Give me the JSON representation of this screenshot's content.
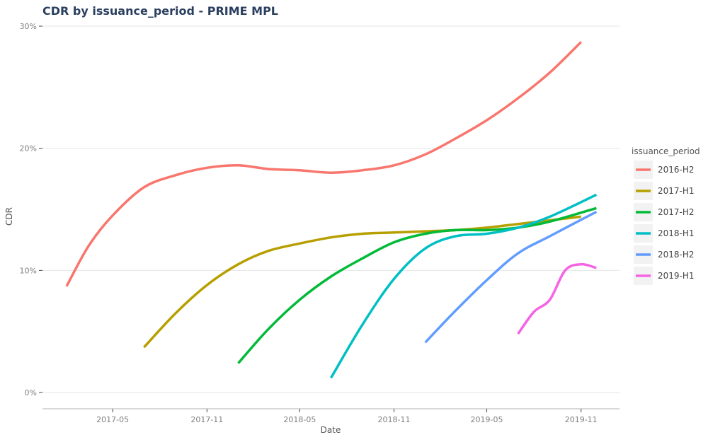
{
  "chart_data": {
    "type": "line",
    "title": "CDR by issuance_period - PRIME MPL",
    "xlabel": "Date",
    "ylabel": "CDR",
    "x_ticks": [
      "2017-05",
      "2017-11",
      "2018-05",
      "2018-11",
      "2019-05",
      "2019-11"
    ],
    "y_ticks": [
      "0%",
      "10%",
      "20%",
      "30%"
    ],
    "ylim": [
      0,
      30
    ],
    "xlim": [
      "2016-12-15",
      "2020-01-15"
    ],
    "grid": true,
    "legend_title": "issuance_period",
    "legend_position": "right",
    "series": [
      {
        "name": "2016-H2",
        "color": "#F8766D",
        "points": [
          [
            "2017-01-31",
            8.7
          ],
          [
            "2017-03-15",
            12.0
          ],
          [
            "2017-05-01",
            14.5
          ],
          [
            "2017-07-01",
            16.8
          ],
          [
            "2017-09-01",
            17.8
          ],
          [
            "2017-11-01",
            18.4
          ],
          [
            "2018-01-01",
            18.6
          ],
          [
            "2018-03-01",
            18.3
          ],
          [
            "2018-05-01",
            18.2
          ],
          [
            "2018-07-01",
            18.0
          ],
          [
            "2018-09-01",
            18.2
          ],
          [
            "2018-11-01",
            18.6
          ],
          [
            "2019-01-01",
            19.5
          ],
          [
            "2019-03-01",
            20.8
          ],
          [
            "2019-05-01",
            22.3
          ],
          [
            "2019-07-01",
            24.1
          ],
          [
            "2019-09-01",
            26.2
          ],
          [
            "2019-11-01",
            28.7
          ]
        ]
      },
      {
        "name": "2017-H1",
        "color": "#B79F00",
        "points": [
          [
            "2017-07-01",
            3.7
          ],
          [
            "2017-09-01",
            6.5
          ],
          [
            "2017-11-01",
            8.8
          ],
          [
            "2018-01-01",
            10.5
          ],
          [
            "2018-03-01",
            11.6
          ],
          [
            "2018-05-01",
            12.2
          ],
          [
            "2018-07-01",
            12.7
          ],
          [
            "2018-09-01",
            13.0
          ],
          [
            "2018-11-01",
            13.1
          ],
          [
            "2019-01-01",
            13.2
          ],
          [
            "2019-03-01",
            13.3
          ],
          [
            "2019-05-01",
            13.5
          ],
          [
            "2019-07-01",
            13.8
          ],
          [
            "2019-09-01",
            14.1
          ],
          [
            "2019-11-01",
            14.4
          ]
        ]
      },
      {
        "name": "2017-H2",
        "color": "#00BA38",
        "points": [
          [
            "2018-01-01",
            2.4
          ],
          [
            "2018-03-01",
            5.2
          ],
          [
            "2018-05-01",
            7.6
          ],
          [
            "2018-07-01",
            9.5
          ],
          [
            "2018-09-01",
            11.0
          ],
          [
            "2018-11-01",
            12.3
          ],
          [
            "2019-01-01",
            13.0
          ],
          [
            "2019-03-01",
            13.3
          ],
          [
            "2019-05-01",
            13.3
          ],
          [
            "2019-07-01",
            13.5
          ],
          [
            "2019-09-01",
            14.0
          ],
          [
            "2019-12-01",
            15.1
          ]
        ]
      },
      {
        "name": "2018-H1",
        "color": "#00BFC4",
        "points": [
          [
            "2018-07-01",
            1.2
          ],
          [
            "2018-09-01",
            5.6
          ],
          [
            "2018-11-01",
            9.3
          ],
          [
            "2019-01-01",
            11.8
          ],
          [
            "2019-03-01",
            12.8
          ],
          [
            "2019-05-01",
            13.0
          ],
          [
            "2019-07-01",
            13.5
          ],
          [
            "2019-09-01",
            14.4
          ],
          [
            "2019-12-01",
            16.2
          ]
        ]
      },
      {
        "name": "2018-H2",
        "color": "#619CFF",
        "points": [
          [
            "2019-01-01",
            4.1
          ],
          [
            "2019-03-01",
            6.7
          ],
          [
            "2019-05-01",
            9.2
          ],
          [
            "2019-07-01",
            11.4
          ],
          [
            "2019-09-01",
            12.8
          ],
          [
            "2019-12-01",
            14.8
          ]
        ]
      },
      {
        "name": "2019-H1",
        "color": "#F564E3",
        "points": [
          [
            "2019-07-01",
            4.8
          ],
          [
            "2019-08-01",
            6.6
          ],
          [
            "2019-09-01",
            7.6
          ],
          [
            "2019-10-01",
            10.0
          ],
          [
            "2019-11-01",
            10.5
          ],
          [
            "2019-12-01",
            10.2
          ]
        ]
      }
    ]
  }
}
